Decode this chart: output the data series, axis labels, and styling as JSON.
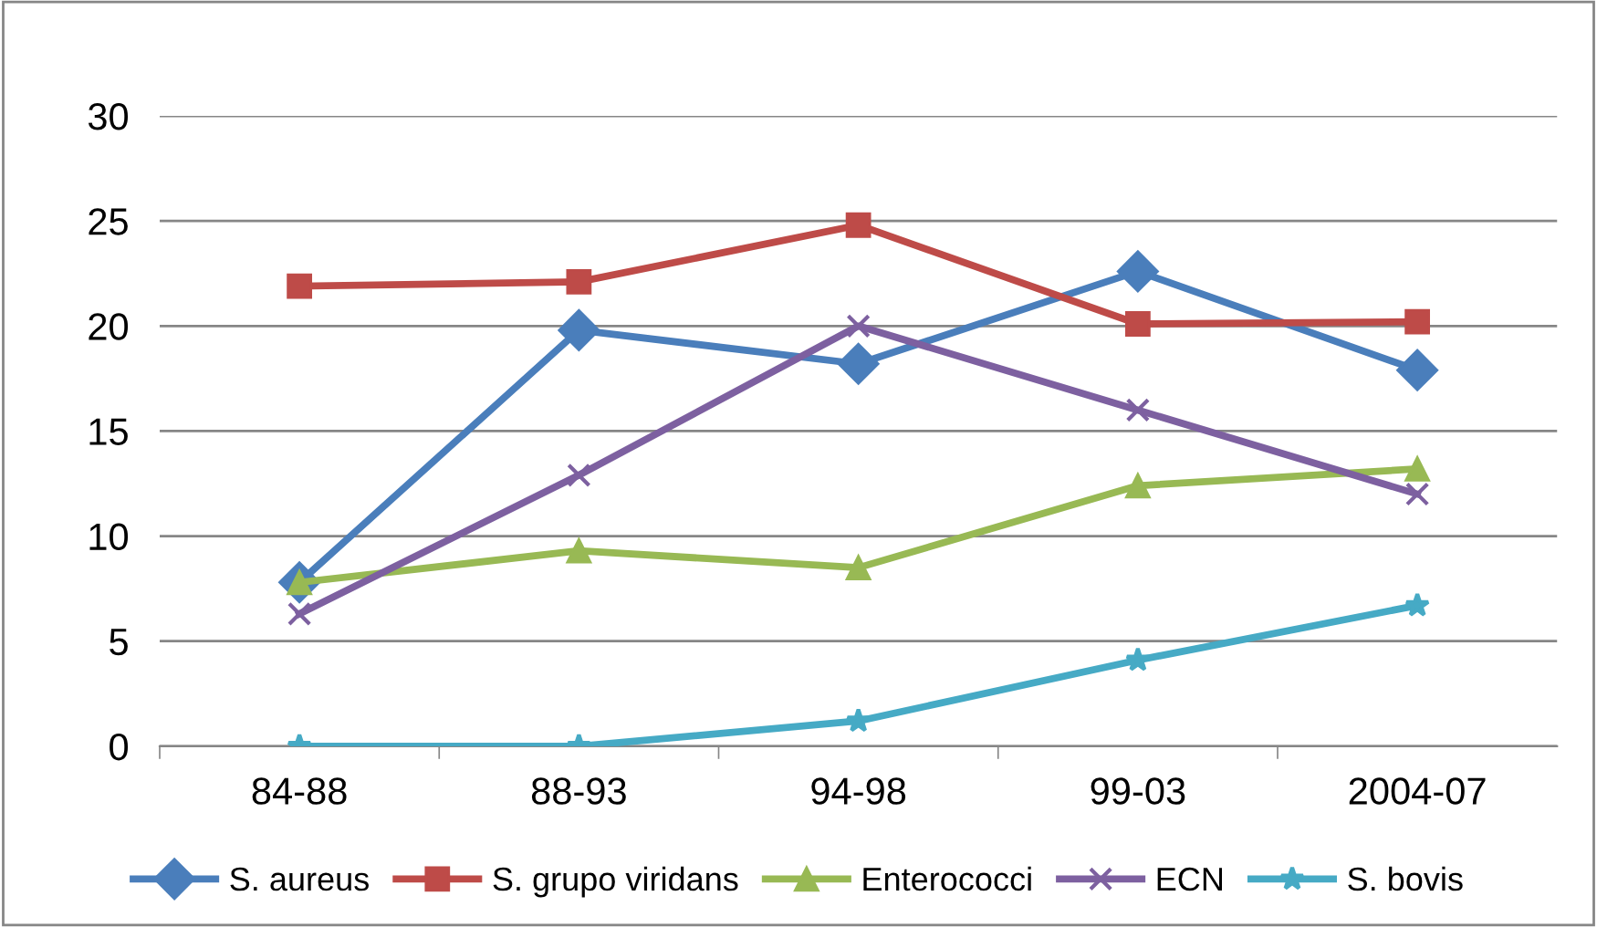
{
  "chart_data": {
    "type": "line",
    "categories": [
      "84-88",
      "88-93",
      "94-98",
      "99-03",
      "2004-07"
    ],
    "series": [
      {
        "name": "S. aureus",
        "color": "#4a7ebb",
        "marker": "diamond",
        "values": [
          7.8,
          19.8,
          18.2,
          22.6,
          17.9
        ]
      },
      {
        "name": "S. grupo viridans",
        "color": "#be4b48",
        "marker": "square",
        "values": [
          21.9,
          22.1,
          24.8,
          20.1,
          20.2
        ]
      },
      {
        "name": "Enterococci",
        "color": "#98b954",
        "marker": "triangle",
        "values": [
          7.8,
          9.3,
          8.5,
          12.4,
          13.2
        ]
      },
      {
        "name": "ECN",
        "color": "#7d60a0",
        "marker": "cross",
        "values": [
          6.3,
          12.9,
          20.0,
          16.0,
          12.0
        ]
      },
      {
        "name": "S. bovis",
        "color": "#46aac5",
        "marker": "star",
        "values": [
          0,
          0,
          1.2,
          4.1,
          6.7
        ]
      }
    ],
    "ylim": [
      0,
      30
    ],
    "yticks": [
      0,
      5,
      10,
      15,
      20,
      25,
      30
    ],
    "grid": "y",
    "legend": "bottom"
  }
}
